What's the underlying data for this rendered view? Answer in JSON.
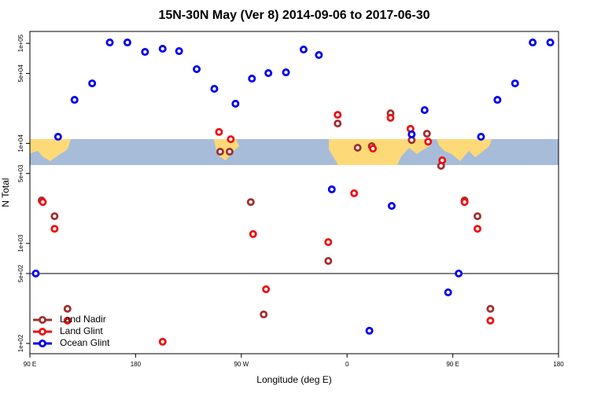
{
  "chart_data": {
    "type": "scatter",
    "title": "15N-30N May (Ver 8)   2014-09-06 to 2017-06-30",
    "x_label": "Longitude (deg E)",
    "y_label": "N Total",
    "log_y": true,
    "xlim": [
      90,
      540
    ],
    "ylim": [
      79,
      131500
    ],
    "xticks": [
      {
        "value": 90,
        "label": "90 E"
      },
      180,
      {
        "value": 270,
        "label": "90 W"
      },
      {
        "value": 360,
        "label": "0"
      },
      {
        "value": 450,
        "label": "90 E"
      },
      {
        "value": 540,
        "label": "180"
      }
    ],
    "yticks": [
      {
        "value": 100,
        "label": "1e+02"
      },
      {
        "value": 500,
        "label": "5e+02"
      },
      {
        "value": 1000,
        "label": "1e+03"
      },
      {
        "value": 5000,
        "label": "5e+03"
      },
      {
        "value": 10000,
        "label": "1e+04"
      },
      {
        "value": 50000,
        "label": "5e+04"
      },
      {
        "value": 100000,
        "label": "1e+05"
      }
    ],
    "reference_line": 500,
    "legend": "bottom-left",
    "series": [
      {
        "name": "Land Nadir",
        "color": "#a03030",
        "x": [
          100,
          111,
          122,
          252,
          260,
          278,
          289,
          344,
          352,
          369,
          381,
          397,
          415,
          428,
          440,
          460,
          471,
          482
        ],
        "values": [
          2690,
          1870,
          222,
          8260,
          8260,
          2590,
          195,
          668,
          15800,
          9040,
          9370,
          20000,
          10800,
          12500,
          5960,
          2690,
          1870,
          222
        ]
      },
      {
        "name": "Land Glint",
        "color": "#ee1111",
        "x": [
          101,
          111,
          122,
          203,
          251,
          261,
          280,
          291,
          344,
          352,
          366,
          382,
          397,
          414,
          429,
          441,
          460,
          471,
          482
        ],
        "values": [
          2590,
          1400,
          169,
          104,
          13000,
          11000,
          1240,
          348,
          1030,
          19300,
          3170,
          8870,
          18000,
          14000,
          10400,
          6770,
          2590,
          1400,
          169
        ]
      },
      {
        "name": "Ocean Glint",
        "color": "#0000ee",
        "x": [
          95,
          114,
          128,
          143,
          158,
          173,
          188,
          203,
          217,
          232,
          247,
          265,
          279,
          293,
          308,
          323,
          336,
          347,
          379,
          398,
          415,
          426,
          446,
          455,
          474,
          488,
          503,
          518,
          533
        ],
        "values": [
          500,
          11640,
          27230,
          39800,
          102000,
          102000,
          82100,
          88300,
          83600,
          55200,
          35100,
          24900,
          44400,
          50400,
          51300,
          86700,
          76400,
          3470,
          134,
          2370,
          12300,
          21500,
          324,
          500,
          11640,
          27230,
          39800,
          102000,
          102000
        ]
      }
    ]
  }
}
